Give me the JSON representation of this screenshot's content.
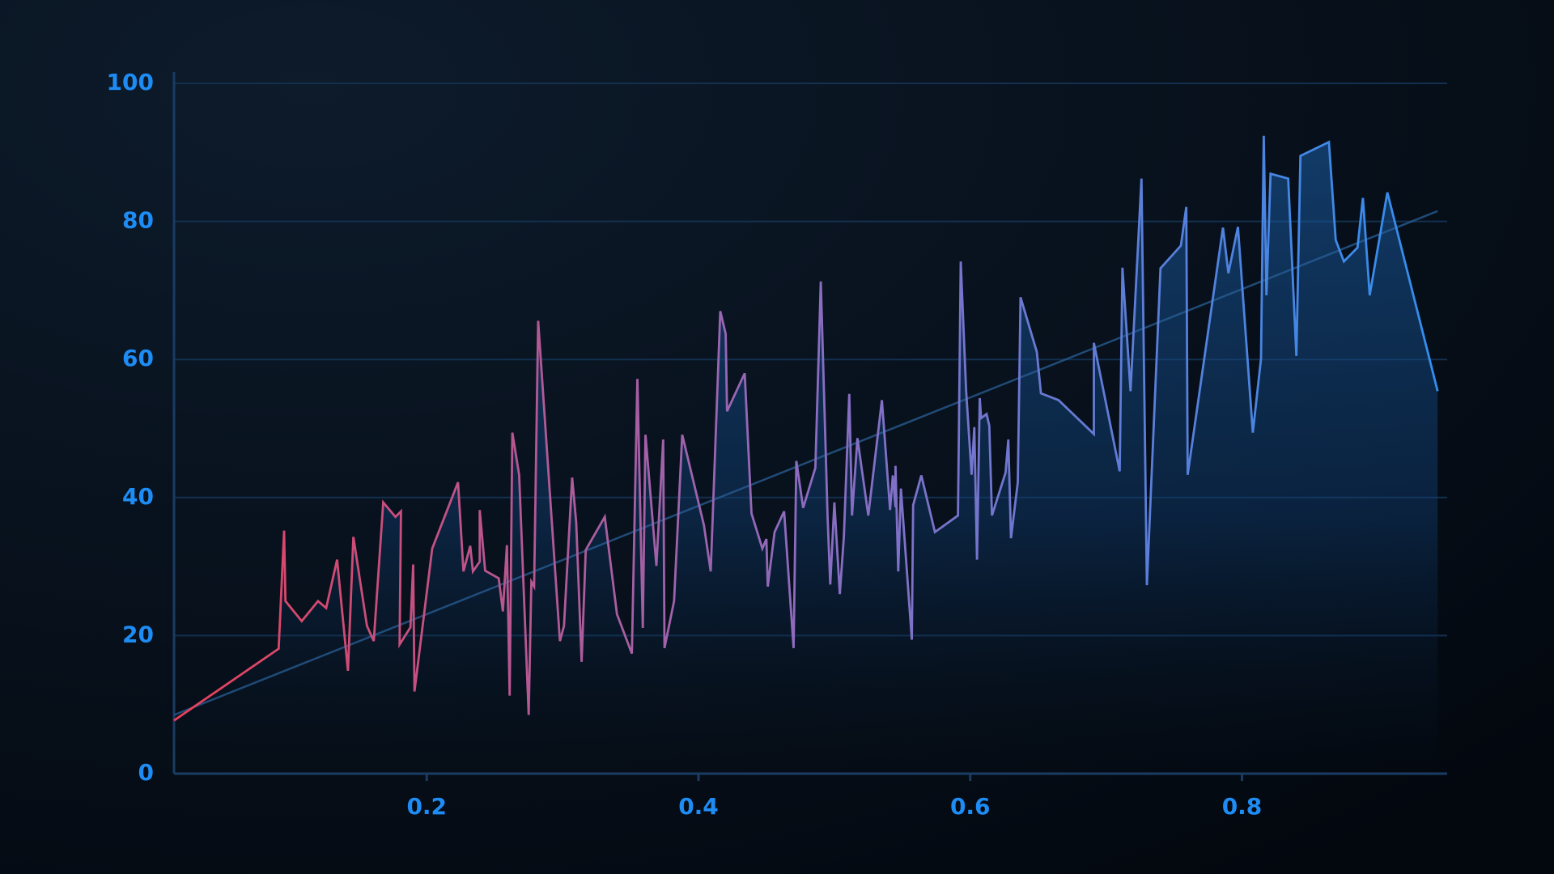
{
  "chart_data": {
    "type": "line",
    "x": [
      0.014,
      0.091,
      0.095,
      0.096,
      0.108,
      0.12,
      0.126,
      0.134,
      0.142,
      0.146,
      0.156,
      0.161,
      0.168,
      0.177,
      0.181,
      0.18,
      0.188,
      0.19,
      0.191,
      0.204,
      0.223,
      0.227,
      0.232,
      0.234,
      0.239,
      0.239,
      0.243,
      0.253,
      0.256,
      0.259,
      0.261,
      0.263,
      0.268,
      0.275,
      0.277,
      0.279,
      0.282,
      0.298,
      0.301,
      0.307,
      0.31,
      0.314,
      0.317,
      0.331,
      0.34,
      0.351,
      0.355,
      0.359,
      0.361,
      0.369,
      0.374,
      0.375,
      0.382,
      0.388,
      0.404,
      0.409,
      0.416,
      0.42,
      0.421,
      0.434,
      0.439,
      0.447,
      0.45,
      0.451,
      0.456,
      0.463,
      0.47,
      0.472,
      0.477,
      0.486,
      0.49,
      0.495,
      0.497,
      0.5,
      0.504,
      0.507,
      0.511,
      0.513,
      0.517,
      0.525,
      0.535,
      0.541,
      0.543,
      0.545,
      0.545,
      0.547,
      0.549,
      0.557,
      0.558,
      0.564,
      0.574,
      0.591,
      0.593,
      0.597,
      0.601,
      0.603,
      0.605,
      0.607,
      0.608,
      0.612,
      0.614,
      0.616,
      0.626,
      0.628,
      0.63,
      0.635,
      0.637,
      0.649,
      0.652,
      0.665,
      0.691,
      0.691,
      0.71,
      0.712,
      0.718,
      0.726,
      0.73,
      0.74,
      0.755,
      0.759,
      0.76,
      0.786,
      0.79,
      0.797,
      0.808,
      0.814,
      0.816,
      0.818,
      0.821,
      0.834,
      0.84,
      0.843,
      0.864,
      0.869,
      0.875,
      0.885,
      0.889,
      0.894,
      0.907,
      0.944
    ],
    "values": [
      7.7,
      18.1,
      35.2,
      25,
      22.1,
      25,
      24,
      31,
      14.9,
      34.3,
      21.4,
      19.2,
      39.3,
      37.2,
      38,
      18.7,
      21.2,
      30.3,
      11.9,
      32.6,
      42.2,
      29.3,
      33,
      29.3,
      30.7,
      38.2,
      29.4,
      28.3,
      23.5,
      33.1,
      11.3,
      49.4,
      43.3,
      8.5,
      27.8,
      27.1,
      65.6,
      19.2,
      21.4,
      42.9,
      36.4,
      16.2,
      32.4,
      37.2,
      23.1,
      17.4,
      57.2,
      21.1,
      49.1,
      30.1,
      48.4,
      18.2,
      25,
      49.1,
      36,
      29.3,
      67,
      63.7,
      52.5,
      58,
      37.7,
      32.6,
      34,
      27.1,
      35,
      38,
      18.2,
      45.3,
      38.5,
      44.3,
      71.3,
      37.2,
      27.4,
      39.3,
      26,
      34.3,
      55,
      37.4,
      48.6,
      37.4,
      54.1,
      38.2,
      43.2,
      38.6,
      44.6,
      29.3,
      41.3,
      19.4,
      38.9,
      43.2,
      35,
      37.4,
      74.2,
      55.4,
      43.3,
      50.2,
      31,
      54.4,
      51.5,
      52.1,
      50.4,
      37.4,
      43.6,
      48.4,
      34.1,
      42.2,
      69,
      61.1,
      55.1,
      54.1,
      49.2,
      62.4,
      43.8,
      73.3,
      55.4,
      86.2,
      27.3,
      73.2,
      76.5,
      82.1,
      43.3,
      79.1,
      72.5,
      79.2,
      49.4,
      60.1,
      92.4,
      69.3,
      86.9,
      86.2,
      60.5,
      89.5,
      91.5,
      77.3,
      74.2,
      76.2,
      83.4,
      69.3,
      84.2,
      55.4
    ],
    "colors": [
      "#e8405a",
      "#8c6cc0",
      "#2f8ff0"
    ],
    "trendline": {
      "x": [
        0.014,
        0.944
      ],
      "values": [
        8.5,
        81.5
      ]
    },
    "xlim": [
      0.014,
      0.951
    ],
    "xticks": [
      0.2,
      0.4,
      0.6,
      0.8
    ],
    "ylim": [
      0,
      100
    ],
    "yticks": [
      0,
      20,
      40,
      60,
      80,
      100
    ],
    "grid": true
  }
}
